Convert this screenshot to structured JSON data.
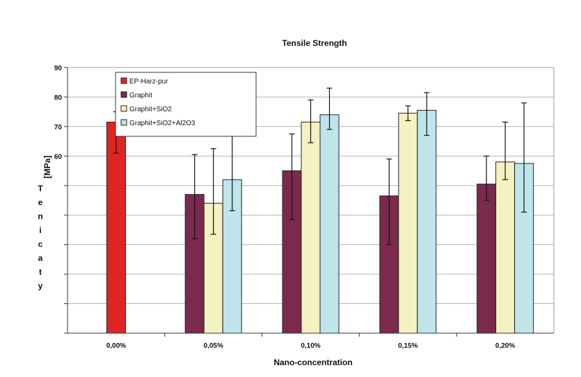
{
  "chart_data": {
    "type": "bar",
    "title": "Tensile Strength",
    "xlabel": "Nano-concentration",
    "ylabel_unit": "[MPa]",
    "ylabel_letters": [
      "T",
      "e",
      "n",
      "i",
      "c",
      "a",
      "t",
      "y"
    ],
    "ylim": [
      0,
      90
    ],
    "yticks": [
      "0",
      "10",
      "20",
      "30",
      "40",
      "50",
      "60",
      "70",
      "80",
      "90"
    ],
    "yticks_visible": [
      "60",
      "70",
      "80",
      "90"
    ],
    "grid": "horizontal",
    "legend_position": "top-left",
    "categories": [
      "0,00%",
      "0,05%",
      "0,10%",
      "0,15%",
      "0,20%"
    ],
    "series": [
      {
        "name": "EP-Harz-pur",
        "color": "#e02424",
        "values": [
          71.5,
          null,
          null,
          null,
          null
        ],
        "err_low": [
          61,
          null,
          null,
          null,
          null
        ],
        "err_high": [
          75,
          null,
          null,
          null,
          null
        ]
      },
      {
        "name": "Graphit",
        "color": "#7b2a4e",
        "values": [
          null,
          47,
          55,
          46.5,
          50.5
        ],
        "err_low": [
          null,
          32,
          38.5,
          30,
          45
        ],
        "err_high": [
          null,
          60.5,
          67.5,
          59,
          60
        ]
      },
      {
        "name": "Graphit+SiO2",
        "color": "#f5f2c2",
        "values": [
          null,
          44,
          71.5,
          74.5,
          58
        ],
        "err_low": [
          null,
          33.5,
          64.5,
          72,
          52
        ],
        "err_high": [
          null,
          62.5,
          79,
          77,
          71.5
        ]
      },
      {
        "name": "Graphit+SiO2+Al2O3",
        "color": "#bfe4ec",
        "values": [
          null,
          52,
          74,
          75.5,
          57.5
        ],
        "err_low": [
          null,
          41.5,
          69,
          67,
          41
        ],
        "err_high": [
          null,
          76.5,
          83,
          81.5,
          78
        ]
      }
    ]
  }
}
